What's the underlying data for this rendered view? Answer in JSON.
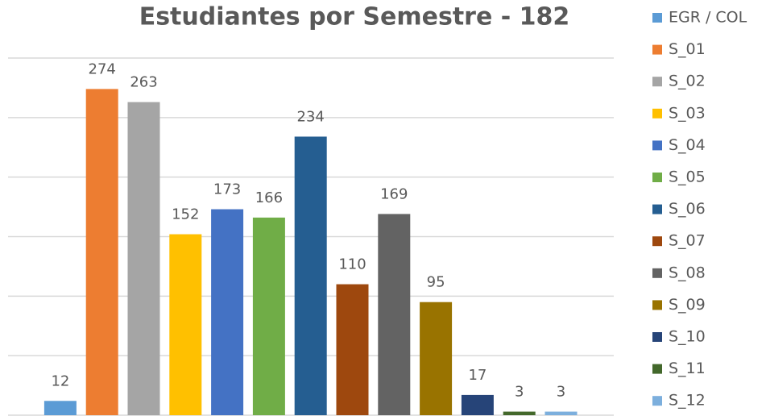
{
  "chart_data": {
    "type": "bar",
    "title": "Estudiantes por Semestre - 182",
    "ylim": [
      0,
      300
    ],
    "yticks": [
      0,
      50,
      100,
      150,
      200,
      250,
      300
    ],
    "grid": true,
    "legend": "right",
    "series": [
      {
        "name": "EGR / COL",
        "color": "#5b9bd5",
        "values": [
          12
        ]
      },
      {
        "name": "S_01",
        "color": "#ed7d31",
        "values": [
          274
        ]
      },
      {
        "name": "S_02",
        "color": "#a5a5a5",
        "values": [
          263
        ]
      },
      {
        "name": "S_03",
        "color": "#ffc000",
        "values": [
          152
        ]
      },
      {
        "name": "S_04",
        "color": "#4472c4",
        "values": [
          173
        ]
      },
      {
        "name": "S_05",
        "color": "#70ad47",
        "values": [
          166
        ]
      },
      {
        "name": "S_06",
        "color": "#255e91",
        "values": [
          234
        ]
      },
      {
        "name": "S_07",
        "color": "#9e480e",
        "values": [
          110
        ]
      },
      {
        "name": "S_08",
        "color": "#636363",
        "values": [
          169
        ]
      },
      {
        "name": "S_09",
        "color": "#997300",
        "values": [
          95
        ]
      },
      {
        "name": "S_10",
        "color": "#264478",
        "values": [
          17
        ]
      },
      {
        "name": "S_11",
        "color": "#43682b",
        "values": [
          3
        ]
      },
      {
        "name": "S_12",
        "color": "#7cafdd",
        "values": [
          3
        ]
      }
    ]
  }
}
